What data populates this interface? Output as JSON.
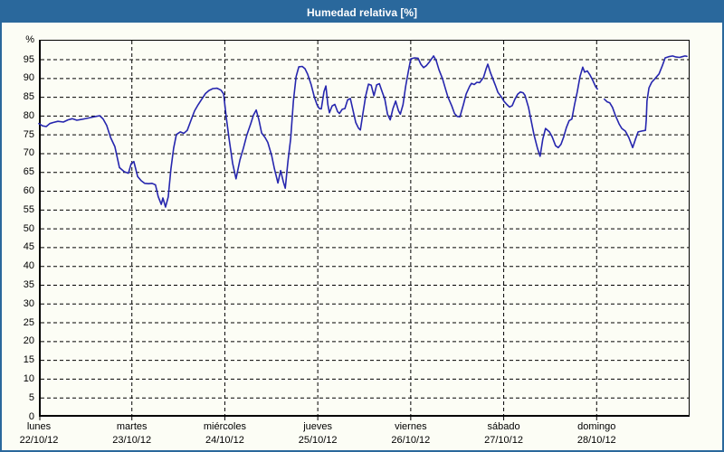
{
  "window": {
    "title": "Humedad relativa [%]"
  },
  "colors": {
    "frame": "#2a689c",
    "titlebar_bg": "#2a689c",
    "title_text": "#ffffff",
    "page_bg": "#fcfdf5",
    "line": "#2626ae",
    "grid": "#000000",
    "axis": "#000000",
    "label_text": "#000000"
  },
  "chart_data": {
    "type": "line",
    "title": "Humedad relativa [%]",
    "ylabel_unit": "%",
    "y_ticks": [
      0,
      5,
      10,
      15,
      20,
      25,
      30,
      35,
      40,
      45,
      50,
      55,
      60,
      65,
      70,
      75,
      80,
      85,
      90,
      95
    ],
    "ylim": [
      0,
      100.3
    ],
    "xlim_hours": [
      0,
      168
    ],
    "grid": "dashed",
    "legend_position": "none",
    "x_days": [
      {
        "name": "lunes",
        "date": "22/10/12"
      },
      {
        "name": "martes",
        "date": "23/10/12"
      },
      {
        "name": "miércoles",
        "date": "24/10/12"
      },
      {
        "name": "jueves",
        "date": "25/10/12"
      },
      {
        "name": "viernes",
        "date": "26/10/12"
      },
      {
        "name": "sábado",
        "date": "27/10/12"
      },
      {
        "name": "domingo",
        "date": "28/10/12"
      }
    ],
    "series": [
      {
        "name": "Humedad relativa",
        "units": "%",
        "x_units": "hours since lunes 22/10/12 00:00",
        "segments": [
          [
            [
              0,
              78
            ],
            [
              0.9,
              77.4
            ],
            [
              1.9,
              77.2
            ],
            [
              2.8,
              78
            ],
            [
              3.7,
              78.3
            ],
            [
              4.9,
              78.6
            ],
            [
              6.3,
              78.4
            ],
            [
              7.5,
              79
            ],
            [
              8.6,
              79.3
            ],
            [
              9.8,
              78.9
            ],
            [
              11,
              79.1
            ],
            [
              12.4,
              79.4
            ],
            [
              13.8,
              79.7
            ],
            [
              14.7,
              79.9
            ],
            [
              15.7,
              80.1
            ],
            [
              16.6,
              79.2
            ],
            [
              17.5,
              77.5
            ],
            [
              18.5,
              74.3
            ],
            [
              19.6,
              71.9
            ],
            [
              20.8,
              66.3
            ],
            [
              22,
              65.2
            ],
            [
              23.1,
              64.8
            ],
            [
              23.8,
              67.3
            ],
            [
              24.5,
              67.9
            ],
            [
              25.5,
              63.9
            ],
            [
              26.4,
              62.8
            ],
            [
              27.3,
              62.1
            ],
            [
              28.3,
              62
            ],
            [
              29.2,
              62.1
            ],
            [
              30.1,
              61.7
            ],
            [
              30.8,
              58.6
            ],
            [
              31.6,
              56.5
            ],
            [
              32,
              58.2
            ],
            [
              32.7,
              55.8
            ],
            [
              33.4,
              58.5
            ],
            [
              34.1,
              66
            ],
            [
              34.8,
              71.5
            ],
            [
              35.5,
              75.1
            ],
            [
              36.5,
              75.8
            ],
            [
              37.4,
              75.4
            ],
            [
              38.3,
              76.2
            ],
            [
              39.3,
              79
            ],
            [
              40.2,
              81.4
            ],
            [
              41.1,
              83
            ],
            [
              42.1,
              84.6
            ],
            [
              43,
              86
            ],
            [
              43.9,
              86.8
            ],
            [
              44.9,
              87.3
            ],
            [
              46,
              87.4
            ],
            [
              47,
              86.9
            ],
            [
              47.7,
              85.9
            ],
            [
              48.4,
              79.5
            ],
            [
              49.1,
              74
            ],
            [
              50,
              67.5
            ],
            [
              50.9,
              63.3
            ],
            [
              51.9,
              68.3
            ],
            [
              52.8,
              71.5
            ],
            [
              53.7,
              75
            ],
            [
              54.7,
              78
            ],
            [
              55.4,
              80.3
            ],
            [
              56.1,
              81.6
            ],
            [
              56.8,
              79
            ],
            [
              57.5,
              75.5
            ],
            [
              58.4,
              74.3
            ],
            [
              59.1,
              73
            ],
            [
              60.1,
              69.5
            ],
            [
              60.8,
              66
            ],
            [
              61.7,
              62.2
            ],
            [
              62.4,
              65.5
            ],
            [
              63.1,
              62.5
            ],
            [
              63.6,
              60.8
            ],
            [
              64.3,
              68
            ],
            [
              65,
              74
            ],
            [
              65.7,
              84
            ],
            [
              66.4,
              90.5
            ],
            [
              67.1,
              93.1
            ],
            [
              68,
              93.2
            ],
            [
              68.7,
              92.6
            ],
            [
              69.4,
              91.1
            ],
            [
              70.3,
              88.3
            ],
            [
              71.1,
              85.1
            ],
            [
              71.8,
              83
            ],
            [
              72.4,
              82
            ],
            [
              72.9,
              81.9
            ],
            [
              73.6,
              86.5
            ],
            [
              74.1,
              88
            ],
            [
              74.6,
              83
            ],
            [
              75,
              80.9
            ],
            [
              75.7,
              82.7
            ],
            [
              76.4,
              83.1
            ],
            [
              77.1,
              81.2
            ],
            [
              77.6,
              80.7
            ],
            [
              78.3,
              81.8
            ],
            [
              79,
              82
            ],
            [
              79.7,
              84.3
            ],
            [
              80.4,
              84.7
            ],
            [
              81.1,
              81.5
            ],
            [
              81.8,
              78.3
            ],
            [
              82.5,
              76.8
            ],
            [
              83,
              76.3
            ],
            [
              83.7,
              81
            ],
            [
              84.4,
              85.5
            ],
            [
              85.1,
              88.5
            ],
            [
              85.8,
              88.2
            ],
            [
              86.5,
              85.4
            ],
            [
              87.2,
              88.3
            ],
            [
              87.9,
              88.6
            ],
            [
              88.6,
              86.5
            ],
            [
              89.3,
              84.5
            ],
            [
              90,
              80.5
            ],
            [
              90.7,
              79
            ],
            [
              91.4,
              82
            ],
            [
              92.1,
              84
            ],
            [
              92.8,
              81.5
            ],
            [
              93.3,
              80.5
            ],
            [
              94,
              83
            ],
            [
              94.7,
              88
            ],
            [
              95.4,
              92
            ],
            [
              96,
              95.2
            ],
            [
              97,
              95.5
            ],
            [
              97.9,
              95.4
            ],
            [
              98.6,
              93.8
            ],
            [
              99.3,
              92.9
            ],
            [
              100,
              93.4
            ],
            [
              100.9,
              94.5
            ],
            [
              101.9,
              96
            ],
            [
              102.6,
              94.7
            ],
            [
              103.3,
              92.3
            ],
            [
              104.2,
              89.9
            ],
            [
              104.9,
              87.5
            ],
            [
              105.6,
              85.1
            ],
            [
              106.6,
              82.7
            ],
            [
              107.3,
              80.7
            ],
            [
              108,
              79.9
            ],
            [
              108.7,
              79.8
            ],
            [
              109.6,
              83.1
            ],
            [
              110.3,
              85.9
            ],
            [
              111.2,
              87.9
            ],
            [
              111.7,
              88.7
            ],
            [
              112.4,
              88.4
            ],
            [
              113.1,
              89
            ],
            [
              113.8,
              88.9
            ],
            [
              114.8,
              90.3
            ],
            [
              115.5,
              92.7
            ],
            [
              115.9,
              93.8
            ],
            [
              116.6,
              91.5
            ],
            [
              117.8,
              88.3
            ],
            [
              118.5,
              86.3
            ],
            [
              119.4,
              85.1
            ],
            [
              120.1,
              83.9
            ],
            [
              120.8,
              83.1
            ],
            [
              121.5,
              82.4
            ],
            [
              122.2,
              82.8
            ],
            [
              122.9,
              84.5
            ],
            [
              123.6,
              85.8
            ],
            [
              124.3,
              86.4
            ],
            [
              125,
              86.2
            ],
            [
              125.5,
              85.5
            ],
            [
              126.4,
              82.3
            ],
            [
              127.1,
              78.7
            ],
            [
              127.8,
              75.1
            ],
            [
              128.7,
              71.5
            ],
            [
              129.4,
              69.3
            ],
            [
              130.1,
              73.9
            ],
            [
              130.8,
              76.7
            ],
            [
              131.8,
              75.8
            ],
            [
              132.5,
              74.5
            ],
            [
              133.4,
              72.1
            ],
            [
              134.1,
              71.6
            ],
            [
              134.8,
              72.5
            ],
            [
              135.5,
              74.5
            ],
            [
              136.2,
              77
            ],
            [
              136.9,
              78.8
            ],
            [
              137.6,
              79.2
            ],
            [
              138.3,
              83.1
            ],
            [
              139,
              86.5
            ],
            [
              139.7,
              90.5
            ],
            [
              140.4,
              93
            ],
            [
              140.9,
              91.7
            ],
            [
              141.6,
              92
            ],
            [
              142.3,
              90.9
            ],
            [
              143,
              89.5
            ],
            [
              143.7,
              87.9
            ],
            [
              144.2,
              87.2
            ]
          ],
          [
            [
              146,
              84.5
            ],
            [
              146.7,
              83.8
            ],
            [
              147.4,
              83.5
            ],
            [
              148.1,
              82.3
            ],
            [
              148.8,
              80.3
            ],
            [
              149.8,
              77.9
            ],
            [
              150.5,
              76.7
            ],
            [
              151.4,
              76
            ],
            [
              152.3,
              74.3
            ],
            [
              153.3,
              71.6
            ],
            [
              154,
              73.8
            ],
            [
              154.7,
              75.8
            ],
            [
              155.6,
              76
            ],
            [
              156.6,
              76.2
            ],
            [
              156.8,
              79
            ],
            [
              157,
              84
            ],
            [
              157.5,
              87.5
            ],
            [
              158.2,
              89
            ],
            [
              159.1,
              90
            ],
            [
              160.1,
              91.2
            ],
            [
              161,
              93.5
            ],
            [
              161.7,
              95.5
            ],
            [
              162.6,
              95.8
            ],
            [
              163.6,
              96
            ],
            [
              164.5,
              95.7
            ],
            [
              165.4,
              95.6
            ],
            [
              166.1,
              95.8
            ],
            [
              166.8,
              96
            ],
            [
              167.3,
              95.9
            ]
          ]
        ]
      }
    ]
  }
}
